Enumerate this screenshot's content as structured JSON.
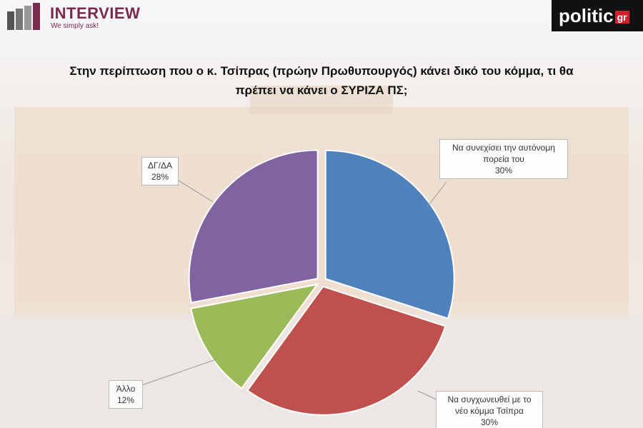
{
  "header": {
    "brand": "INTERVIEW",
    "tagline": "We simply ask!",
    "site": "politic",
    "site_suffix": "gr"
  },
  "chart_data": {
    "type": "pie",
    "title": "Στην περίπτωση που ο κ. Τσίπρας (πρώην Πρωθυπουργός) κάνει δικό του κόμμα, τι θα πρέπει να κάνει ο ΣΥΡΙΖΑ ΠΣ;",
    "categories": [
      "Να συνεχίσει την αυτόνομη πορεία του",
      "Να συγχωνευθεί με το νέο κόμμα Τσίπρα",
      "Άλλο",
      "ΔΓ/ΔΑ"
    ],
    "values": [
      30,
      30,
      12,
      28
    ],
    "value_labels": [
      "30%",
      "30%",
      "12%",
      "28%"
    ],
    "colors": [
      "#4f81bd",
      "#c0504d",
      "#9bbb59",
      "#8064a2"
    ]
  }
}
